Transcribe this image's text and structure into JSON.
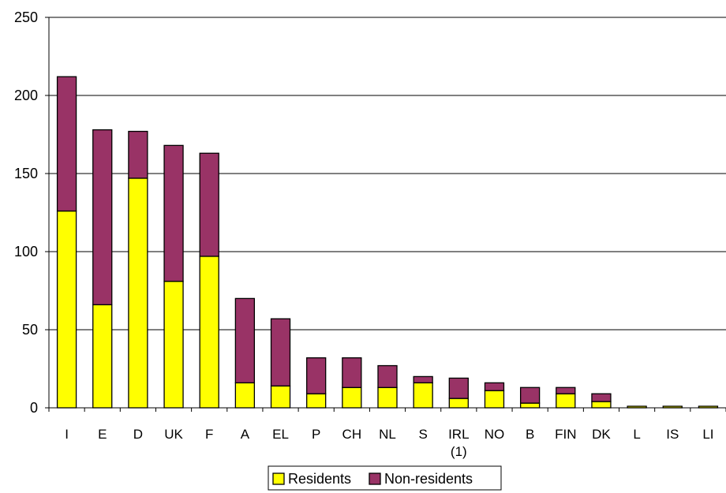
{
  "chart_data": {
    "type": "bar",
    "stacked": true,
    "categories": [
      "I",
      "E",
      "D",
      "UK",
      "F",
      "A",
      "EL",
      "P",
      "CH",
      "NL",
      "S",
      "IRL|(1)",
      "NO",
      "B",
      "FIN",
      "DK",
      "L",
      "IS",
      "LI"
    ],
    "series": [
      {
        "name": "Residents",
        "color": "#ffff00",
        "values": [
          126,
          66,
          147,
          81,
          97,
          16,
          14,
          9,
          13,
          13,
          16,
          6,
          11,
          3,
          9,
          4,
          1,
          1,
          1
        ]
      },
      {
        "name": "Non-residents",
        "color": "#993366",
        "values": [
          86,
          112,
          30,
          87,
          66,
          54,
          43,
          23,
          19,
          14,
          4,
          13,
          5,
          10,
          4,
          5,
          0,
          0,
          0
        ]
      }
    ],
    "ylim": [
      0,
      250
    ],
    "yticks": [
      0,
      50,
      100,
      150,
      200,
      250
    ],
    "grid": true,
    "legend": "bottom",
    "title": "",
    "xlabel": "",
    "ylabel": ""
  }
}
